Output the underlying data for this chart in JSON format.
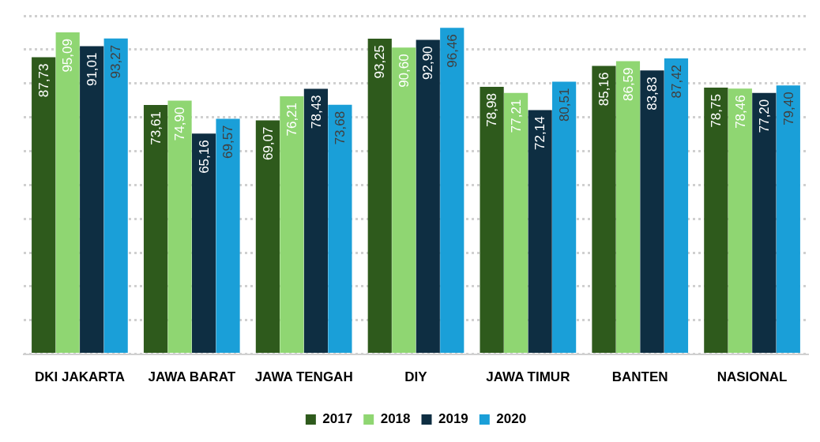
{
  "chart_data": {
    "type": "bar",
    "categories": [
      "DKI JAKARTA",
      "JAWA BARAT",
      "JAWA TENGAH",
      "DIY",
      "JAWA TIMUR",
      "BANTEN",
      "NASIONAL"
    ],
    "series": [
      {
        "name": "2017",
        "color": "#2e5a1c",
        "values": [
          87.73,
          73.61,
          69.07,
          93.25,
          78.98,
          85.16,
          78.75
        ],
        "value_labels": [
          "87,73",
          "73,61",
          "69,07",
          "93,25",
          "78,98",
          "85,16",
          "78,75"
        ]
      },
      {
        "name": "2018",
        "color": "#8fd672",
        "values": [
          95.09,
          74.9,
          76.21,
          90.6,
          77.21,
          86.59,
          78.46
        ],
        "value_labels": [
          "95,09",
          "74,90",
          "76,21",
          "90,60",
          "77,21",
          "86,59",
          "78,46"
        ]
      },
      {
        "name": "2019",
        "color": "#0e2e42",
        "values": [
          91.01,
          65.16,
          78.43,
          92.9,
          72.14,
          83.83,
          77.2
        ],
        "value_labels": [
          "91,01",
          "65,16",
          "78,43",
          "92,90",
          "72,14",
          "83,83",
          "77,20"
        ]
      },
      {
        "name": "2020",
        "color": "#1a9fd8",
        "values": [
          93.27,
          69.57,
          73.68,
          96.46,
          80.51,
          87.42,
          79.4
        ],
        "value_labels": [
          "93,27",
          "69,57",
          "73,68",
          "96,46",
          "80,51",
          "87,42",
          "79,40"
        ]
      }
    ],
    "tick_labels": "x",
    "grid": "y",
    "legend": "bottom"
  }
}
